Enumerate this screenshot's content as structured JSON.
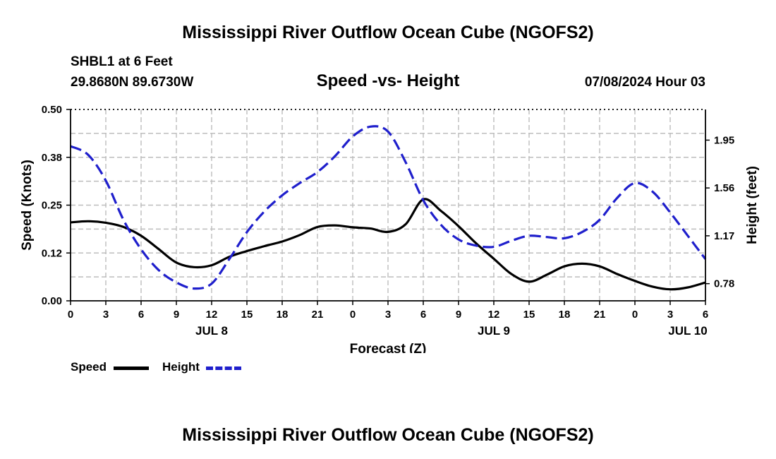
{
  "header": {
    "title": "Mississippi River Outflow Ocean Cube (NGOFS2)",
    "station": "SHBL1 at 6 Feet",
    "coords": "29.8680N  89.6730W",
    "datetime": "07/08/2024 Hour 03"
  },
  "footer": {
    "title": "Mississippi River Outflow Ocean Cube (NGOFS2)"
  },
  "legend": [
    {
      "label": "Speed",
      "color": "#000000",
      "style": "solid"
    },
    {
      "label": "Height",
      "color": "#1f1fcc",
      "style": "dashed"
    }
  ],
  "chart_data": {
    "type": "line",
    "title": "Speed -vs- Height",
    "xlabel": "Forecast (Z)",
    "ylabel": "Speed (Knots)",
    "y2label": "Height (feet)",
    "x_unit": "hours since Jul 8 00Z",
    "xlim": [
      0,
      54
    ],
    "ylim": [
      0,
      0.5
    ],
    "y2lim": [
      0.64,
      2.2
    ],
    "x_ticks": [
      {
        "x": 0,
        "label": "0"
      },
      {
        "x": 3,
        "label": "3"
      },
      {
        "x": 6,
        "label": "6"
      },
      {
        "x": 9,
        "label": "9"
      },
      {
        "x": 12,
        "label": "12"
      },
      {
        "x": 15,
        "label": "15"
      },
      {
        "x": 18,
        "label": "18"
      },
      {
        "x": 21,
        "label": "21"
      },
      {
        "x": 24,
        "label": "0"
      },
      {
        "x": 27,
        "label": "3"
      },
      {
        "x": 30,
        "label": "6"
      },
      {
        "x": 33,
        "label": "9"
      },
      {
        "x": 36,
        "label": "12"
      },
      {
        "x": 39,
        "label": "15"
      },
      {
        "x": 42,
        "label": "18"
      },
      {
        "x": 45,
        "label": "21"
      },
      {
        "x": 48,
        "label": "0"
      },
      {
        "x": 51,
        "label": "3"
      },
      {
        "x": 54,
        "label": "6"
      }
    ],
    "date_labels": [
      {
        "x": 12,
        "label": "JUL 8"
      },
      {
        "x": 36,
        "label": "JUL 9"
      },
      {
        "x": 52.5,
        "label": "JUL 10"
      }
    ],
    "y_ticks": [
      {
        "value": 0.0,
        "label": "0.00"
      },
      {
        "value": 0.125,
        "label": "0.12"
      },
      {
        "value": 0.25,
        "label": "0.25"
      },
      {
        "value": 0.375,
        "label": "0.38"
      },
      {
        "value": 0.5,
        "label": "0.50"
      }
    ],
    "y2_ticks": [
      {
        "value": 0.78,
        "label": "0.78"
      },
      {
        "value": 1.17,
        "label": "1.17"
      },
      {
        "value": 1.56,
        "label": "1.56"
      },
      {
        "value": 1.95,
        "label": "1.95"
      }
    ],
    "series": [
      {
        "name": "Speed",
        "axis": "left",
        "color": "#000000",
        "dashed": false,
        "x": [
          0,
          1.5,
          3,
          4.5,
          6,
          7.5,
          9,
          10.5,
          12,
          13.5,
          15,
          16.5,
          18,
          19.5,
          21,
          22.5,
          24,
          25.5,
          27,
          28.5,
          30,
          31.5,
          33,
          34.5,
          36,
          37.5,
          39,
          40.5,
          42,
          43.5,
          45,
          46.5,
          48,
          49.5,
          51,
          52.5,
          54
        ],
        "values": [
          0.205,
          0.208,
          0.204,
          0.193,
          0.17,
          0.135,
          0.1,
          0.088,
          0.093,
          0.115,
          0.13,
          0.143,
          0.155,
          0.172,
          0.193,
          0.197,
          0.192,
          0.189,
          0.18,
          0.2,
          0.265,
          0.235,
          0.195,
          0.15,
          0.11,
          0.07,
          0.05,
          0.068,
          0.09,
          0.097,
          0.09,
          0.07,
          0.052,
          0.037,
          0.03,
          0.035,
          0.048
        ]
      },
      {
        "name": "Height",
        "axis": "right",
        "color": "#1f1fcc",
        "dashed": true,
        "x": [
          0,
          1.5,
          3,
          4.5,
          6,
          7.5,
          9,
          10.5,
          12,
          13.5,
          15,
          16.5,
          18,
          19.5,
          21,
          22.5,
          24,
          25.5,
          27,
          28.5,
          30,
          31.5,
          33,
          34.5,
          36,
          37.5,
          39,
          40.5,
          42,
          43.5,
          45,
          46.5,
          48,
          49.5,
          51,
          52.5,
          54
        ],
        "values": [
          1.9,
          1.83,
          1.62,
          1.3,
          1.06,
          0.89,
          0.79,
          0.74,
          0.78,
          0.98,
          1.2,
          1.37,
          1.5,
          1.6,
          1.69,
          1.82,
          1.98,
          2.06,
          2.02,
          1.77,
          1.46,
          1.26,
          1.14,
          1.09,
          1.08,
          1.13,
          1.17,
          1.16,
          1.15,
          1.2,
          1.3,
          1.48,
          1.6,
          1.53,
          1.36,
          1.17,
          0.98
        ]
      }
    ]
  }
}
